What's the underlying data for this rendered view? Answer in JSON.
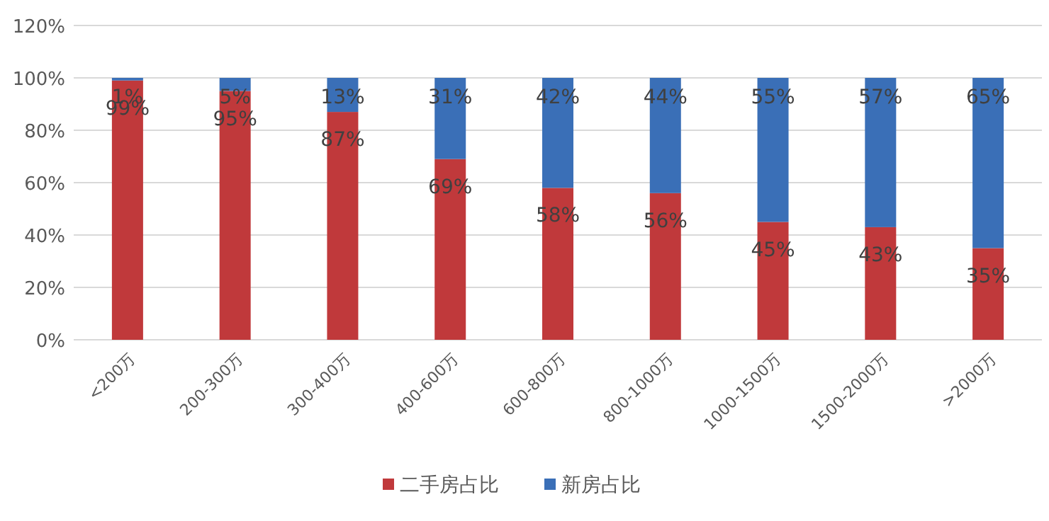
{
  "chart_data": {
    "type": "bar",
    "stacked": true,
    "categories": [
      "<200万",
      "200-300万",
      "300-400万",
      "400-600万",
      "600-800万",
      "800-1000万",
      "1000-1500万",
      "1500-2000万",
      ">2000万"
    ],
    "series": [
      {
        "name": "二手房占比",
        "color": "#c0393b",
        "values": [
          99,
          95,
          87,
          69,
          58,
          56,
          45,
          43,
          35
        ],
        "value_labels": [
          "99%",
          "95%",
          "87%",
          "69%",
          "58%",
          "56%",
          "45%",
          "43%",
          "35%"
        ]
      },
      {
        "name": "新房占比",
        "color": "#3a6fb7",
        "values": [
          1,
          5,
          13,
          31,
          42,
          44,
          55,
          57,
          65
        ],
        "value_labels": [
          "1%",
          "5%",
          "13%",
          "31%",
          "42%",
          "44%",
          "55%",
          "57%",
          "65%"
        ]
      }
    ],
    "ylim": [
      0,
      120
    ],
    "yticks": [
      {
        "value": 0,
        "label": "0%"
      },
      {
        "value": 20,
        "label": "20%"
      },
      {
        "value": 40,
        "label": "40%"
      },
      {
        "value": 60,
        "label": "60%"
      },
      {
        "value": 80,
        "label": "80%"
      },
      {
        "value": 100,
        "label": "100%"
      },
      {
        "value": 120,
        "label": "120%"
      }
    ],
    "grid": "y",
    "legend": "bottom"
  }
}
